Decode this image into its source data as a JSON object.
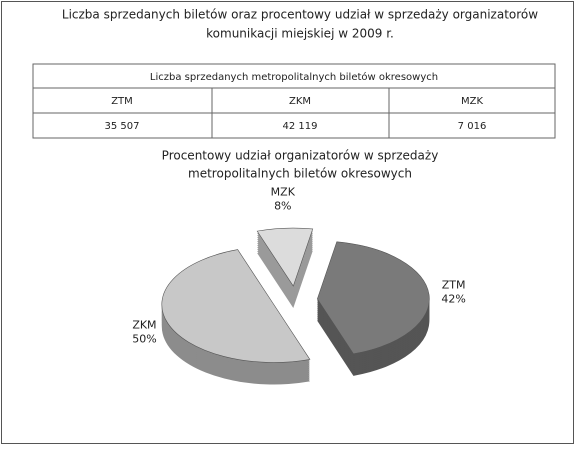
{
  "title": [
    "Liczba sprzedanych biletów oraz procentowy udział w sprzedaży organizatorów",
    "komunikacji miejskiej w 2009 r."
  ],
  "table": {
    "title": "Liczba sprzedanych metropolitalnych biletów okresowych",
    "columns": [
      "ZTM",
      "ZKM",
      "MZK"
    ],
    "rows": [
      [
        "35 507",
        "42 119",
        "7 016"
      ]
    ]
  },
  "chart_data": {
    "type": "pie",
    "title": [
      "Procentowy udział organizatorów w sprzedaży",
      "metropolitalnych biletów okresowych"
    ],
    "categories": [
      "ZTM",
      "ZKM",
      "MZK"
    ],
    "values": [
      42,
      50,
      8
    ],
    "value_labels": [
      "42%",
      "50%",
      "8%"
    ],
    "colors": [
      "#7a7a7a",
      "#c8c8c8",
      "#dcdcdc"
    ],
    "exploded": true,
    "three_d": true
  }
}
